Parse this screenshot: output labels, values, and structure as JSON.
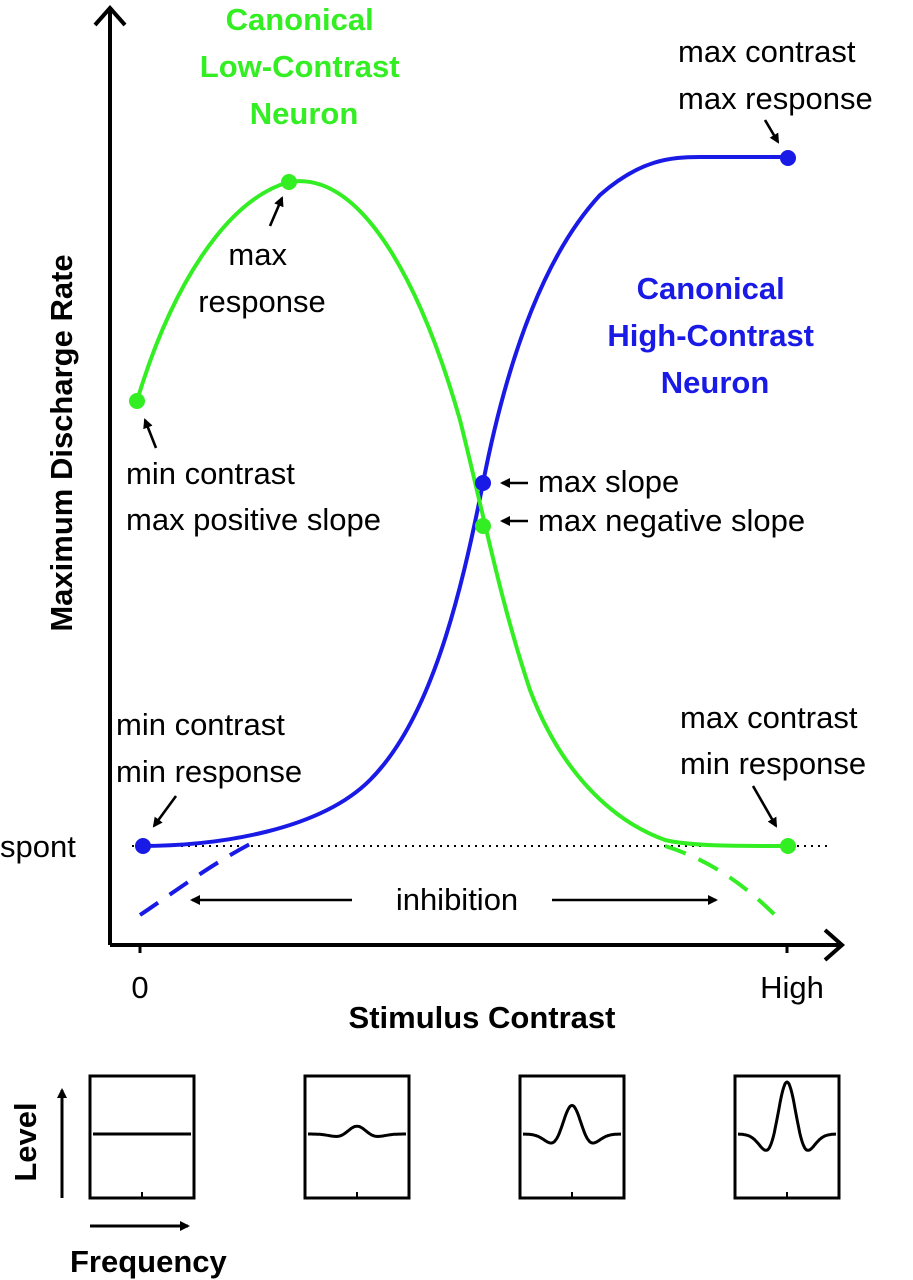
{
  "colors": {
    "low_contrast_green": "#33ee22",
    "high_contrast_blue": "#1a1ae6",
    "ink": "#000000"
  },
  "axes": {
    "y_label": "Maximum Discharge Rate",
    "x_label": "Stimulus Contrast",
    "x_tick_low": "0",
    "x_tick_high": "High",
    "spont_label": "spont"
  },
  "low_contrast_neuron": {
    "title_lines": [
      "Canonical",
      "Low-Contrast",
      "Neuron"
    ]
  },
  "high_contrast_neuron": {
    "title_lines": [
      "Canonical",
      "High-Contrast",
      "Neuron"
    ]
  },
  "annotations": {
    "max_contrast_max_response": [
      "max contrast",
      "max response"
    ],
    "max_response": [
      "max",
      "response"
    ],
    "min_contrast_max_positive_slope": [
      "min contrast",
      "max positive slope"
    ],
    "max_slope": "max slope",
    "max_negative_slope": "max negative slope",
    "min_contrast_min_response": [
      "min contrast",
      "min response"
    ],
    "max_contrast_min_response": [
      "max contrast",
      "min response"
    ],
    "inhibition": "inhibition"
  },
  "spectra_panel": {
    "y_label": "Level",
    "x_label": "Frequency",
    "peak_levels": [
      0,
      0.15,
      0.55,
      1.0
    ]
  }
}
